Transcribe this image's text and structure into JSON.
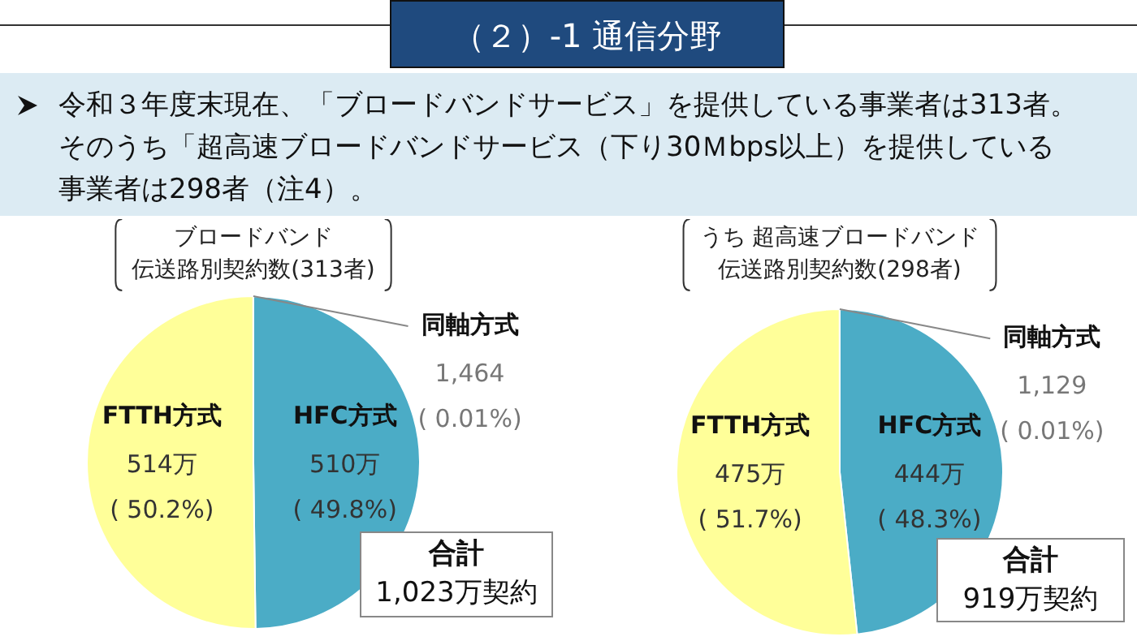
{
  "chart_data": [
    {
      "type": "pie",
      "title": "ブロードバンド",
      "subtitle": "伝送路別契約数(313者)",
      "categories": [
        "HFC方式",
        "FTTH方式",
        "同軸方式"
      ],
      "values": [
        49.8,
        50.2,
        0.01
      ],
      "value_labels": [
        "510万\n( 49.8%)",
        "514万\n( 50.2%)",
        "1,464\n( 0.01%)"
      ],
      "colors": [
        "#4bacc6",
        "#ffff99",
        "#7f7f7f"
      ],
      "annotations": [
        "（２）-1 通信分野",
        "令和３年度末現在、「ブロードバンドサービス」を提供している事業者は313者。",
        "そのうち「超高速ブロードバンドサービス（下り30Ｍbps以上）を提供している事業者は298者（注4）。",
        "合計\n1,023万契約"
      ]
    },
    {
      "type": "pie",
      "title": "うち 超高速ブロードバンド",
      "subtitle": "伝送路別契約数(298者)",
      "categories": [
        "HFC方式",
        "FTTH方式",
        "同軸方式"
      ],
      "values": [
        48.3,
        51.7,
        0.01
      ],
      "value_labels": [
        "444万\n( 48.3%)",
        "475万\n( 51.7%)",
        "1,129\n( 0.01%)"
      ],
      "colors": [
        "#4bacc6",
        "#ffff99",
        "#7f7f7f"
      ],
      "annotations": [
        "合計\n919万契約"
      ]
    }
  ]
}
